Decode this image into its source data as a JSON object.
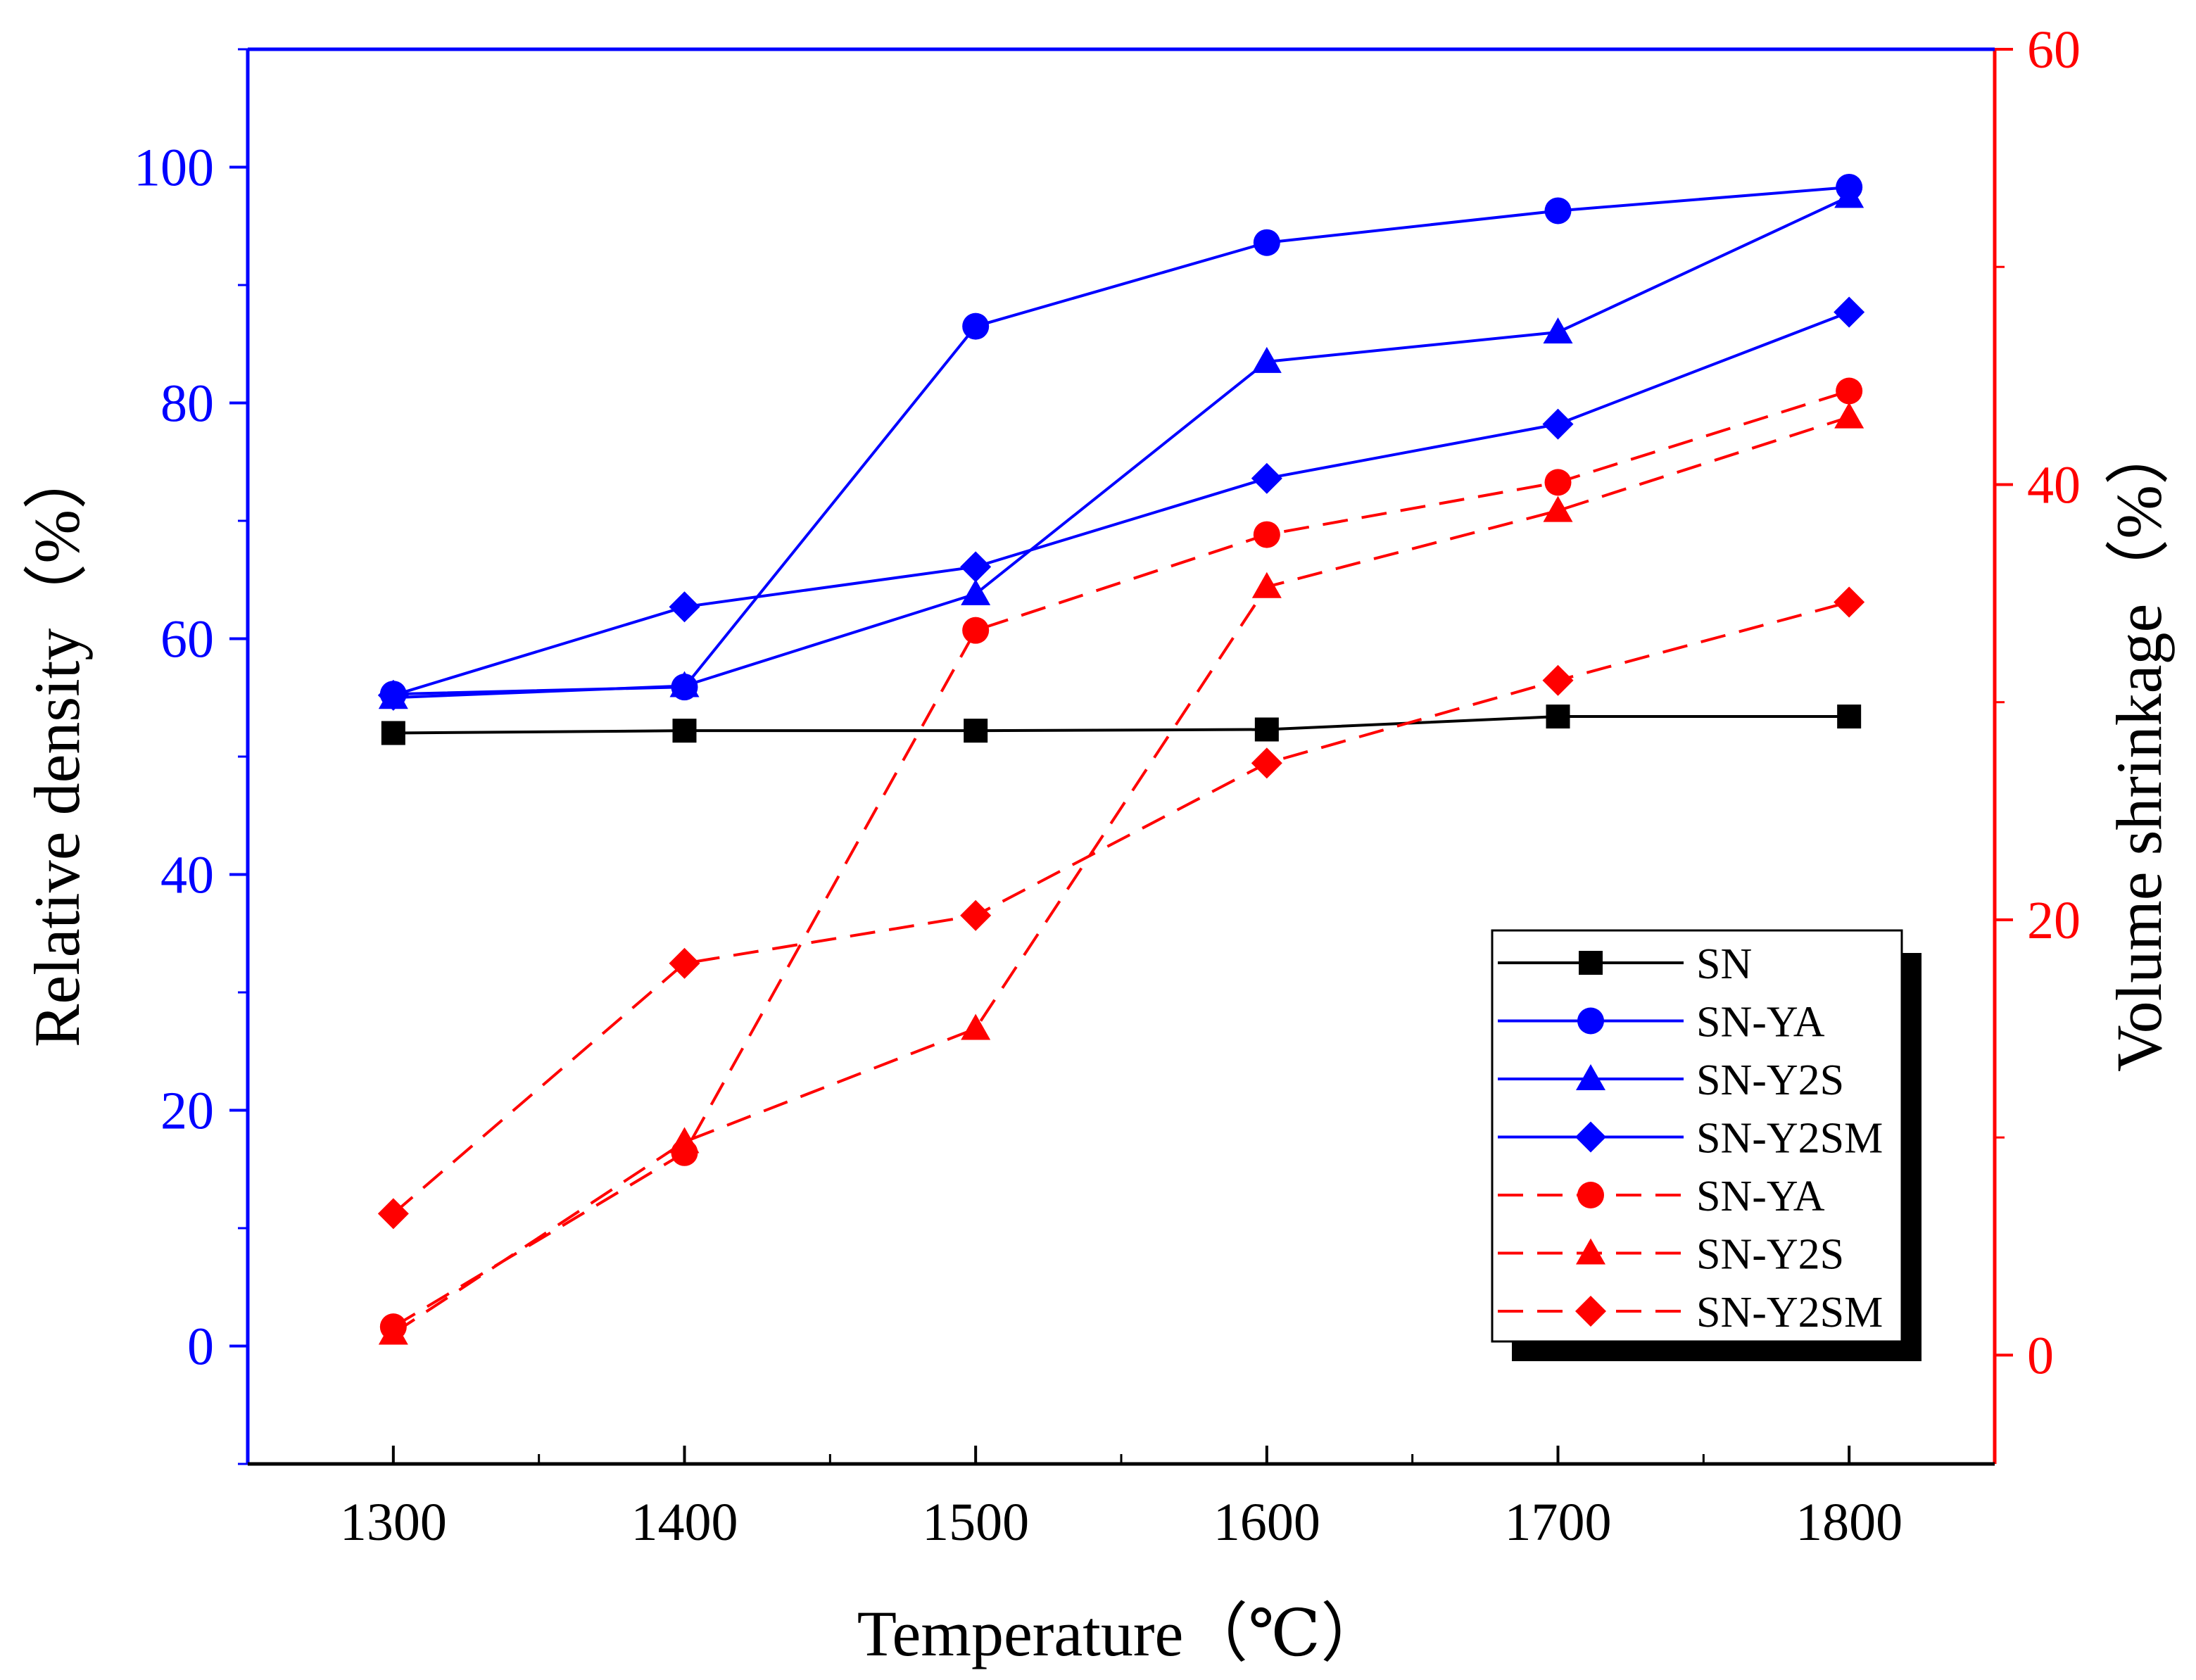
{
  "chart_data": {
    "type": "line",
    "title": "",
    "xlabel": "Temperature（℃）",
    "ylabel_left": "Relative density（%）",
    "ylabel_right": "Volume shrinkage（%）",
    "xlim": [
      1250,
      1850
    ],
    "ylim_left": [
      -10,
      110
    ],
    "ylim_right": [
      -5,
      60
    ],
    "x_ticks": [
      1300,
      1400,
      1500,
      1600,
      1700,
      1800
    ],
    "y_left_ticks": [
      0,
      20,
      40,
      60,
      80,
      100
    ],
    "y_right_ticks": [
      0,
      20,
      40,
      60
    ],
    "x": [
      1300,
      1400,
      1500,
      1600,
      1700,
      1800
    ],
    "colors": {
      "left_axis": "#0000FF",
      "right_axis": "#FF0000",
      "bottom_axis": "#000000"
    },
    "legend_position": "bottom-right",
    "series": [
      {
        "name": "SN",
        "axis": "left",
        "color": "#000000",
        "marker": "square",
        "dashed": false,
        "values": [
          52.0,
          52.2,
          52.2,
          52.3,
          53.4,
          53.4
        ]
      },
      {
        "name": "SN-YA",
        "axis": "left",
        "color": "#0000FF",
        "marker": "circle",
        "dashed": false,
        "values": [
          55.3,
          55.9,
          86.5,
          93.6,
          96.3,
          98.3
        ]
      },
      {
        "name": "SN-Y2S",
        "axis": "left",
        "color": "#0000FF",
        "marker": "triangle",
        "dashed": false,
        "values": [
          55.0,
          56.0,
          63.8,
          83.5,
          86.0,
          97.5
        ]
      },
      {
        "name": "SN-Y2SM",
        "axis": "left",
        "color": "#0000FF",
        "marker": "diamond",
        "dashed": false,
        "values": [
          55.2,
          62.7,
          66.1,
          73.6,
          78.2,
          87.7
        ]
      },
      {
        "name": "SN-YA",
        "axis": "right",
        "color": "#FF0000",
        "marker": "circle",
        "dashed": true,
        "values": [
          1.3,
          9.3,
          33.3,
          37.7,
          40.1,
          44.3
        ]
      },
      {
        "name": "SN-Y2S",
        "axis": "right",
        "color": "#FF0000",
        "marker": "triangle",
        "dashed": true,
        "values": [
          1.0,
          9.8,
          15.0,
          35.3,
          38.8,
          43.1
        ]
      },
      {
        "name": "SN-Y2SM",
        "axis": "right",
        "color": "#FF0000",
        "marker": "diamond",
        "dashed": true,
        "values": [
          6.5,
          18.0,
          20.2,
          27.2,
          31.0,
          34.6
        ]
      }
    ]
  }
}
